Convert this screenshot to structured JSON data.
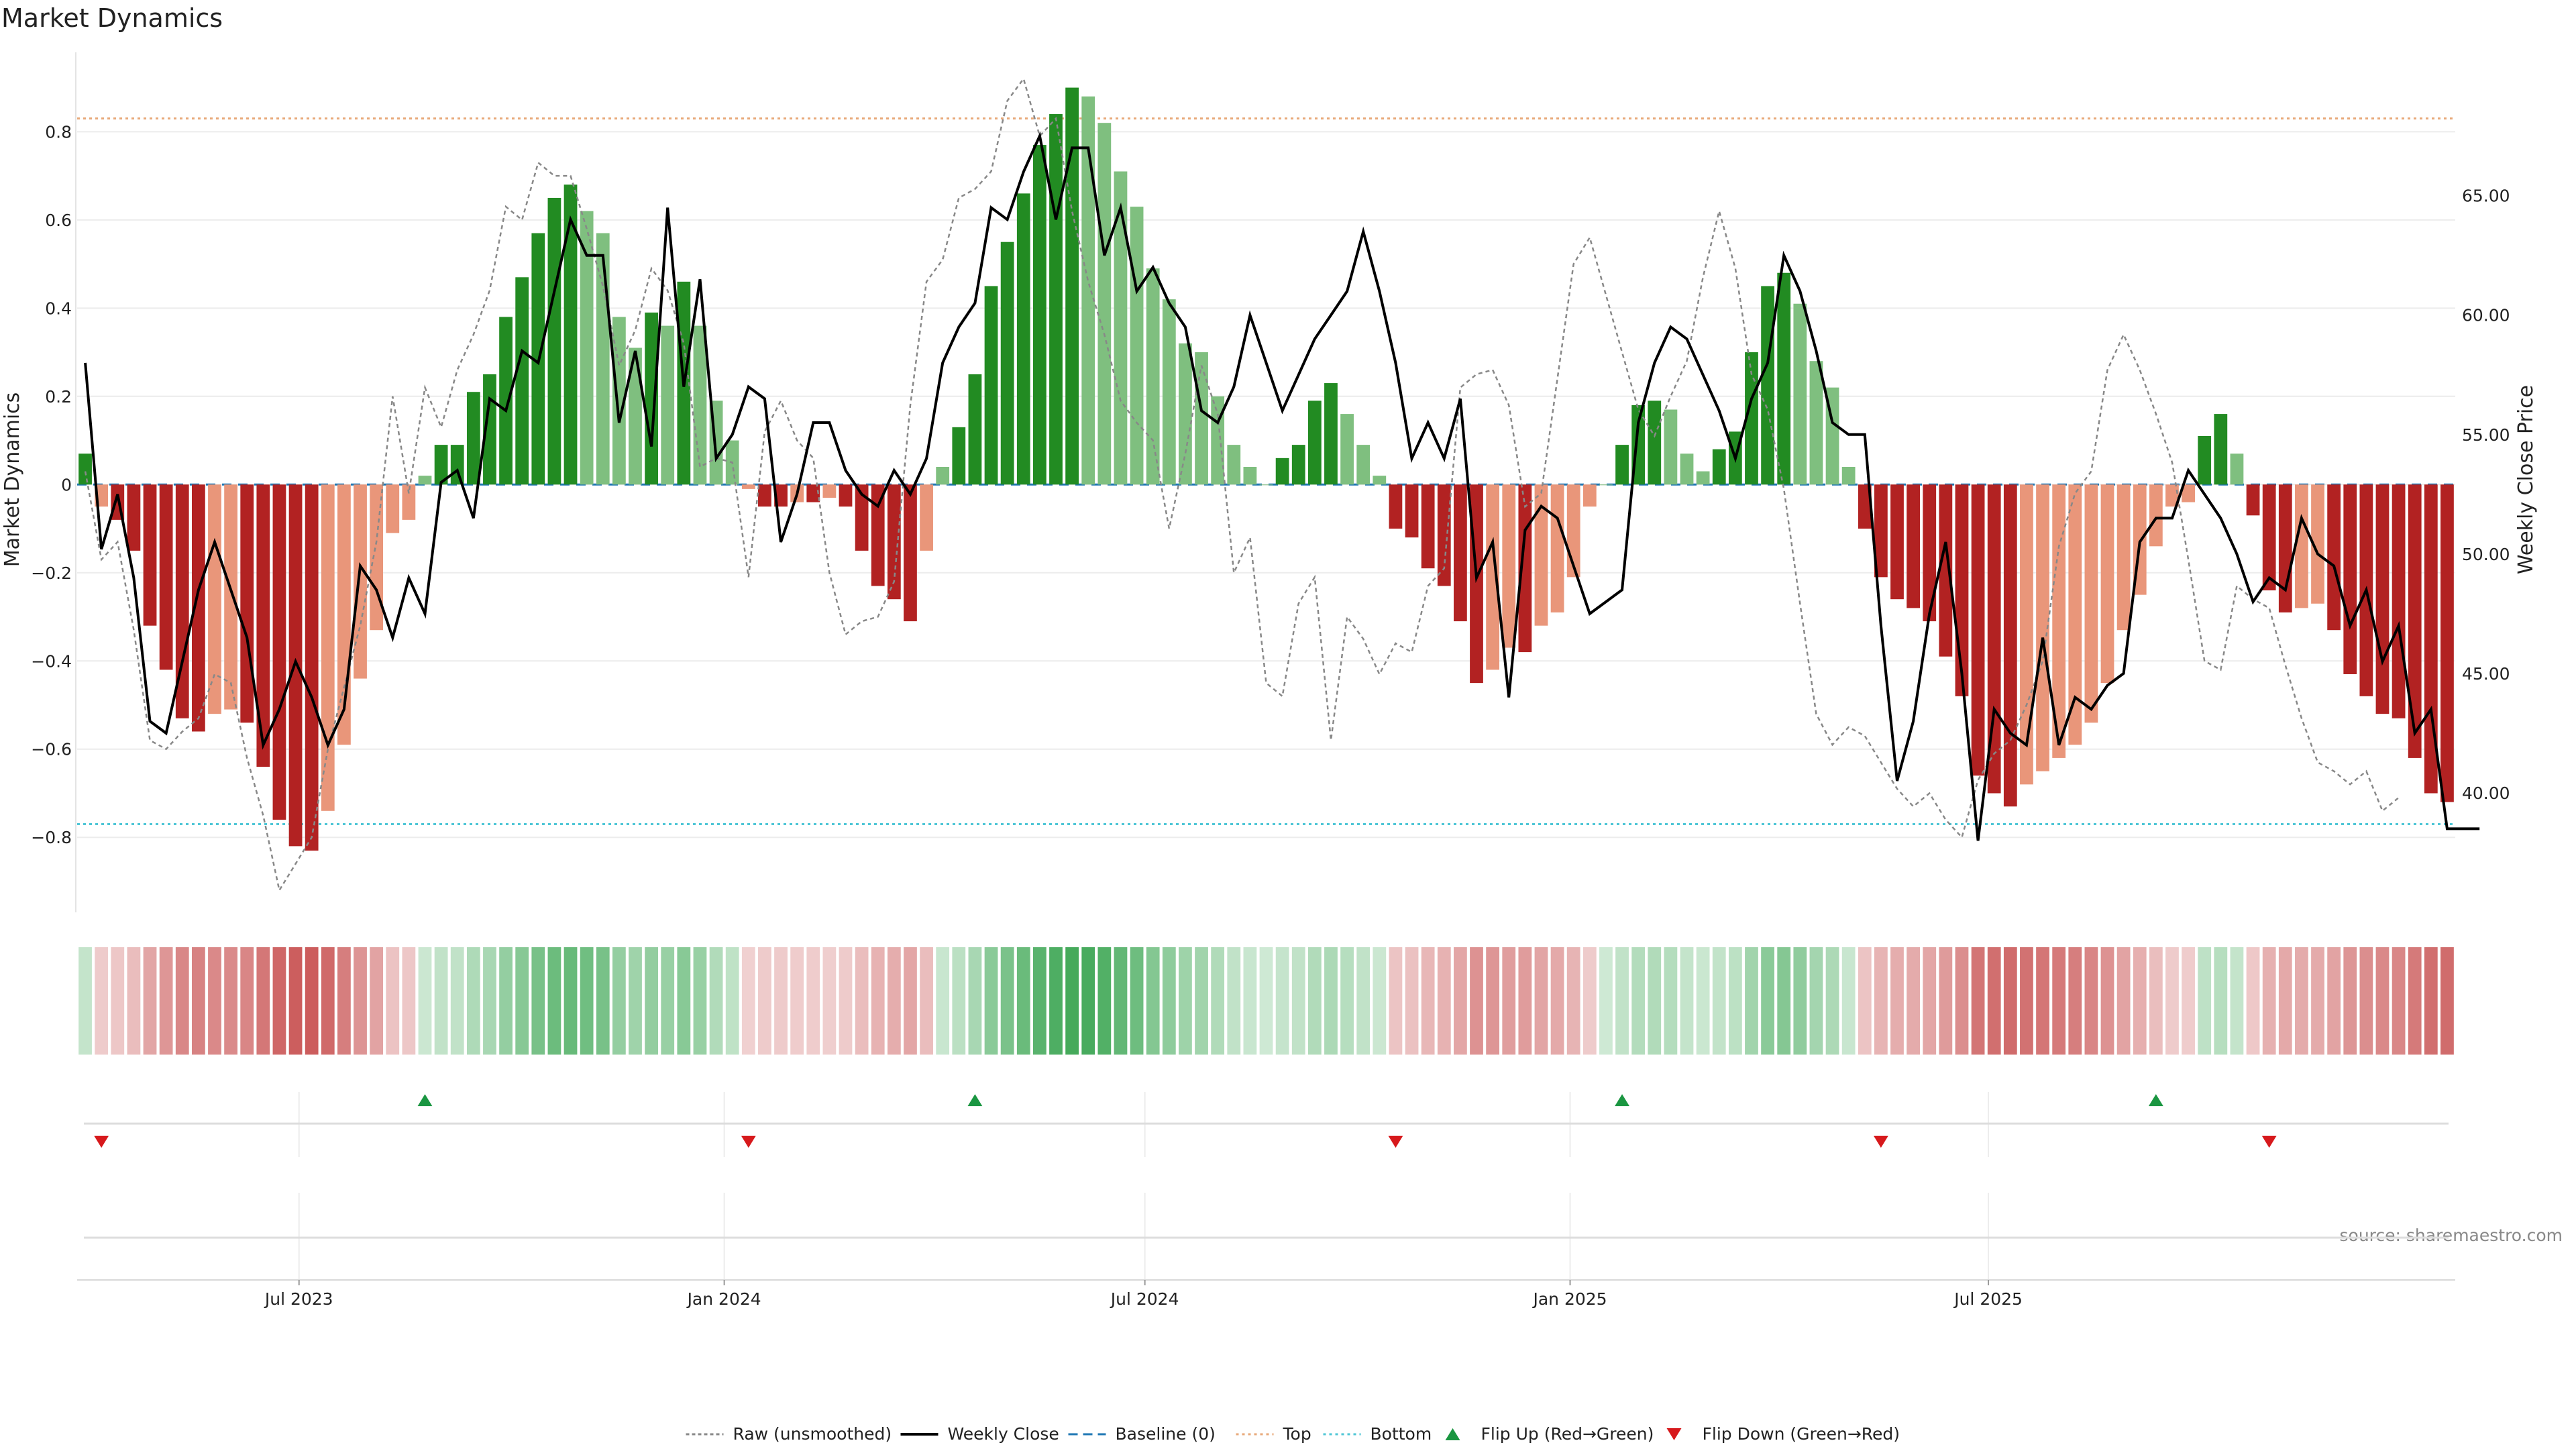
{
  "chart_data": {
    "type": "bar",
    "title": "Market Dynamics",
    "ylabel_left": "Market Dynamics",
    "ylabel_right": "Weekly Close Price",
    "source": "source: sharemaestro.com",
    "x_start": "2023-03-27",
    "x_step_weeks": 1,
    "ylim_left": [
      -0.97,
      0.98
    ],
    "ylim_right": [
      35.0,
      71.0
    ],
    "left_ticks": [
      -0.8,
      -0.6,
      -0.4,
      -0.2,
      0,
      0.2,
      0.4,
      0.6,
      0.8
    ],
    "left_tick_labels": [
      "−0.8",
      "−0.6",
      "−0.4",
      "−0.2",
      "0",
      "0.2",
      "0.4",
      "0.6",
      "0.8"
    ],
    "right_ticks": [
      40,
      45,
      50,
      55,
      60,
      65
    ],
    "right_tick_labels": [
      "40.00",
      "45.00",
      "50.00",
      "55.00",
      "60.00",
      "65.00"
    ],
    "x_ticks": [
      {
        "label": "Jul 2023",
        "date": "2023-07-01"
      },
      {
        "label": "Jan 2024",
        "date": "2024-01-01"
      },
      {
        "label": "Jul 2024",
        "date": "2024-07-01"
      },
      {
        "label": "Jan 2025",
        "date": "2025-01-01"
      },
      {
        "label": "Jul 2025",
        "date": "2025-07-01"
      }
    ],
    "top_level": 0.83,
    "bottom_level": -0.77,
    "market_dynamics": [
      0.07,
      -0.05,
      -0.08,
      -0.15,
      -0.32,
      -0.42,
      -0.53,
      -0.56,
      -0.52,
      -0.51,
      -0.54,
      -0.64,
      -0.76,
      -0.82,
      -0.83,
      -0.74,
      -0.59,
      -0.44,
      -0.33,
      -0.11,
      -0.08,
      0.02,
      0.09,
      0.09,
      0.21,
      0.25,
      0.38,
      0.47,
      0.57,
      0.65,
      0.68,
      0.62,
      0.57,
      0.38,
      0.31,
      0.39,
      0.36,
      0.46,
      0.36,
      0.19,
      0.1,
      -0.01,
      -0.05,
      -0.05,
      -0.04,
      -0.04,
      -0.03,
      -0.05,
      -0.15,
      -0.23,
      -0.26,
      -0.31,
      -0.15,
      0.04,
      0.13,
      0.25,
      0.45,
      0.55,
      0.66,
      0.77,
      0.84,
      0.9,
      0.88,
      0.82,
      0.71,
      0.63,
      0.49,
      0.42,
      0.32,
      0.3,
      0.2,
      0.09,
      0.04,
      0.0,
      0.06,
      0.09,
      0.19,
      0.23,
      0.16,
      0.09,
      0.02,
      -0.1,
      -0.12,
      -0.19,
      -0.23,
      -0.31,
      -0.45,
      -0.42,
      -0.37,
      -0.38,
      -0.32,
      -0.29,
      -0.21,
      -0.05,
      0.0,
      0.09,
      0.18,
      0.19,
      0.17,
      0.07,
      0.03,
      0.08,
      0.12,
      0.3,
      0.45,
      0.48,
      0.41,
      0.28,
      0.22,
      0.04,
      -0.1,
      -0.21,
      -0.26,
      -0.28,
      -0.31,
      -0.39,
      -0.48,
      -0.66,
      -0.7,
      -0.73,
      -0.68,
      -0.65,
      -0.62,
      -0.59,
      -0.54,
      -0.45,
      -0.33,
      -0.25,
      -0.14,
      -0.05,
      -0.04,
      0.11,
      0.16,
      0.07,
      -0.07,
      -0.24,
      -0.29,
      -0.28,
      -0.27,
      -0.33,
      -0.43,
      -0.48,
      -0.52,
      -0.53,
      -0.62,
      -0.7,
      -0.72
    ],
    "raw_unsmoothed": [
      0.03,
      -0.17,
      -0.13,
      -0.33,
      -0.58,
      -0.6,
      -0.56,
      -0.53,
      -0.43,
      -0.45,
      -0.62,
      -0.75,
      -0.92,
      -0.86,
      -0.8,
      -0.6,
      -0.46,
      -0.32,
      -0.13,
      0.2,
      -0.02,
      0.22,
      0.13,
      0.26,
      0.34,
      0.44,
      0.63,
      0.6,
      0.73,
      0.7,
      0.7,
      0.58,
      0.45,
      0.27,
      0.35,
      0.49,
      0.44,
      0.32,
      0.04,
      0.06,
      0.05,
      -0.21,
      0.12,
      0.19,
      0.1,
      0.06,
      -0.2,
      -0.34,
      -0.31,
      -0.3,
      -0.22,
      0.18,
      0.46,
      0.51,
      0.65,
      0.67,
      0.71,
      0.87,
      0.92,
      0.79,
      0.83,
      0.62,
      0.46,
      0.34,
      0.19,
      0.14,
      0.1,
      -0.1,
      0.07,
      0.27,
      0.16,
      -0.2,
      -0.12,
      -0.45,
      -0.48,
      -0.27,
      -0.21,
      -0.58,
      -0.3,
      -0.35,
      -0.43,
      -0.36,
      -0.38,
      -0.23,
      -0.19,
      0.22,
      0.25,
      0.26,
      0.18,
      -0.05,
      -0.02,
      0.24,
      0.5,
      0.56,
      0.43,
      0.3,
      0.17,
      0.11,
      0.2,
      0.28,
      0.47,
      0.62,
      0.49,
      0.25,
      0.17,
      -0.01,
      -0.27,
      -0.52,
      -0.59,
      -0.55,
      -0.57,
      -0.63,
      -0.69,
      -0.73,
      -0.7,
      -0.76,
      -0.8,
      -0.67,
      -0.61,
      -0.58,
      -0.5,
      -0.4,
      -0.14,
      -0.02,
      0.03,
      0.26,
      0.34,
      0.26,
      0.16,
      0.05,
      -0.17,
      -0.4,
      -0.42,
      -0.23,
      -0.26,
      -0.28,
      -0.41,
      -0.53,
      -0.63,
      -0.65,
      -0.68,
      -0.65,
      -0.74,
      -0.71
    ],
    "weekly_close": [
      58.0,
      50.2,
      52.5,
      49.0,
      43.0,
      42.5,
      45.5,
      48.5,
      50.5,
      48.5,
      46.5,
      42.0,
      43.5,
      45.5,
      44.0,
      42.0,
      43.5,
      49.5,
      48.5,
      46.5,
      49.0,
      47.5,
      53.0,
      53.5,
      51.5,
      56.5,
      56.0,
      58.5,
      58.0,
      61.0,
      64.0,
      62.5,
      62.5,
      55.5,
      58.5,
      54.5,
      64.5,
      57.0,
      61.5,
      54.0,
      55.0,
      57.0,
      56.5,
      50.5,
      52.5,
      55.5,
      55.5,
      53.5,
      52.5,
      52.0,
      53.5,
      52.5,
      54.0,
      58.0,
      59.5,
      60.5,
      64.5,
      64.0,
      66.0,
      67.5,
      64.0,
      67.0,
      67.0,
      62.5,
      64.5,
      61.0,
      62.0,
      60.5,
      59.5,
      56.0,
      55.5,
      57.0,
      60.0,
      58.0,
      56.0,
      57.5,
      59.0,
      60.0,
      61.0,
      63.5,
      61.0,
      58.0,
      54.0,
      55.5,
      54.0,
      56.5,
      49.0,
      50.5,
      44.0,
      51.0,
      52.0,
      51.5,
      49.5,
      47.5,
      48.0,
      48.5,
      55.5,
      58.0,
      59.5,
      59.0,
      57.5,
      56.0,
      54.0,
      56.5,
      58.0,
      62.5,
      61.0,
      58.5,
      55.5,
      55.0,
      55.0,
      47.0,
      40.5,
      43.0,
      47.5,
      50.5,
      45.0,
      38.0,
      43.5,
      42.5,
      42.0,
      46.5,
      42.0,
      44.0,
      43.5,
      44.5,
      45.0,
      50.5,
      51.5,
      51.5,
      53.5,
      52.5,
      51.5,
      50.0,
      48.0,
      49.0,
      48.5,
      51.5,
      50.0,
      49.5,
      47.0,
      48.5,
      45.5,
      47.0,
      42.5,
      43.5,
      38.5,
      38.5,
      38.5
    ],
    "flip_up_weeks": [
      21,
      55,
      95,
      128
    ],
    "flip_down_weeks": [
      1,
      41,
      81,
      111,
      135
    ],
    "legend": [
      {
        "label": "Raw (unsmoothed)",
        "color": "#888888"
      },
      {
        "label": "Weekly Close",
        "color": "#000000"
      },
      {
        "label": "Baseline (0)",
        "color": "#1f77b4"
      },
      {
        "label": "Top",
        "color": "#e8a97a"
      },
      {
        "label": "Bottom",
        "color": "#4ec6d6"
      },
      {
        "label": "Flip Up (Red→Green)",
        "color": "#1a9641"
      },
      {
        "label": "Flip Down (Green→Red)",
        "color": "#d7191c"
      }
    ],
    "colors": {
      "strong_green": "#228b22",
      "weak_green": "#7fbf7f",
      "strong_red": "#b22222",
      "weak_red": "#e9967a",
      "top_line": "#e8a97a",
      "bottom_line": "#4ec6d6",
      "baseline": "#1f77b4",
      "raw_line": "#888888",
      "close_line": "#000000",
      "flip_up": "#1a9641",
      "flip_down": "#d7191c"
    }
  }
}
